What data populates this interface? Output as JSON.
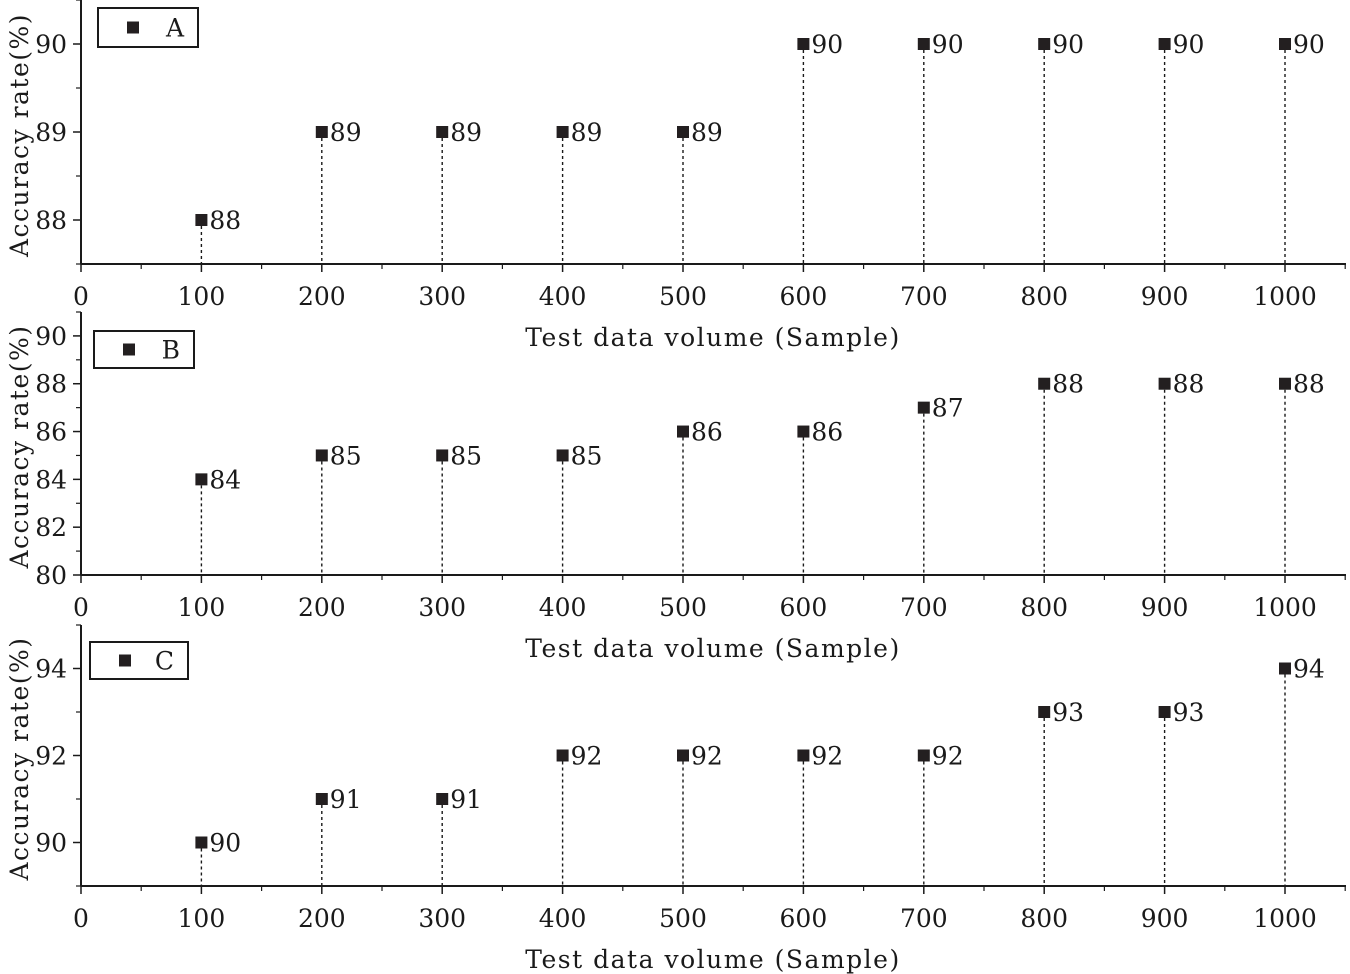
{
  "colors": {
    "marker": "#231f20",
    "axis": "#1a1a1a",
    "background": "#ffffff"
  },
  "chart_data": [
    {
      "type": "scatter",
      "panel": "A",
      "xlabel": "Test data volume (Sample)",
      "ylabel": "Accuracy rate(%)",
      "x_ticks": [
        0,
        100,
        200,
        300,
        400,
        500,
        600,
        700,
        800,
        900,
        1000
      ],
      "y_ticks": [
        88,
        89,
        90
      ],
      "xlim": [
        0,
        1050
      ],
      "ylim": [
        87.5,
        90.5
      ],
      "drop_lines": true,
      "grid": false,
      "legend": "top-left",
      "series": [
        {
          "name": "A",
          "x": [
            100,
            200,
            300,
            400,
            500,
            600,
            700,
            800,
            900,
            1000
          ],
          "y": [
            88,
            89,
            89,
            89,
            89,
            90,
            90,
            90,
            90,
            90
          ]
        }
      ]
    },
    {
      "type": "scatter",
      "panel": "B",
      "xlabel": "Test data volume (Sample)",
      "ylabel": "Accuracy rate(%)",
      "x_ticks": [
        0,
        100,
        200,
        300,
        400,
        500,
        600,
        700,
        800,
        900,
        1000
      ],
      "y_ticks": [
        80,
        82,
        84,
        86,
        88,
        90
      ],
      "xlim": [
        0,
        1050
      ],
      "ylim": [
        80,
        91
      ],
      "drop_lines": true,
      "grid": false,
      "legend": "top-left",
      "series": [
        {
          "name": "B",
          "x": [
            100,
            200,
            300,
            400,
            500,
            600,
            700,
            800,
            900,
            1000
          ],
          "y": [
            84,
            85,
            85,
            85,
            86,
            86,
            87,
            88,
            88,
            88
          ]
        }
      ]
    },
    {
      "type": "scatter",
      "panel": "C",
      "xlabel": "Test data volume (Sample)",
      "ylabel": "Accuracy rate(%)",
      "x_ticks": [
        0,
        100,
        200,
        300,
        400,
        500,
        600,
        700,
        800,
        900,
        1000
      ],
      "y_ticks": [
        90,
        92,
        94
      ],
      "xlim": [
        0,
        1050
      ],
      "ylim": [
        89,
        95
      ],
      "drop_lines": true,
      "grid": false,
      "legend": "top-left",
      "series": [
        {
          "name": "C",
          "x": [
            100,
            200,
            300,
            400,
            500,
            600,
            700,
            800,
            900,
            1000
          ],
          "y": [
            90,
            91,
            91,
            92,
            92,
            92,
            92,
            93,
            93,
            94
          ]
        }
      ]
    }
  ]
}
